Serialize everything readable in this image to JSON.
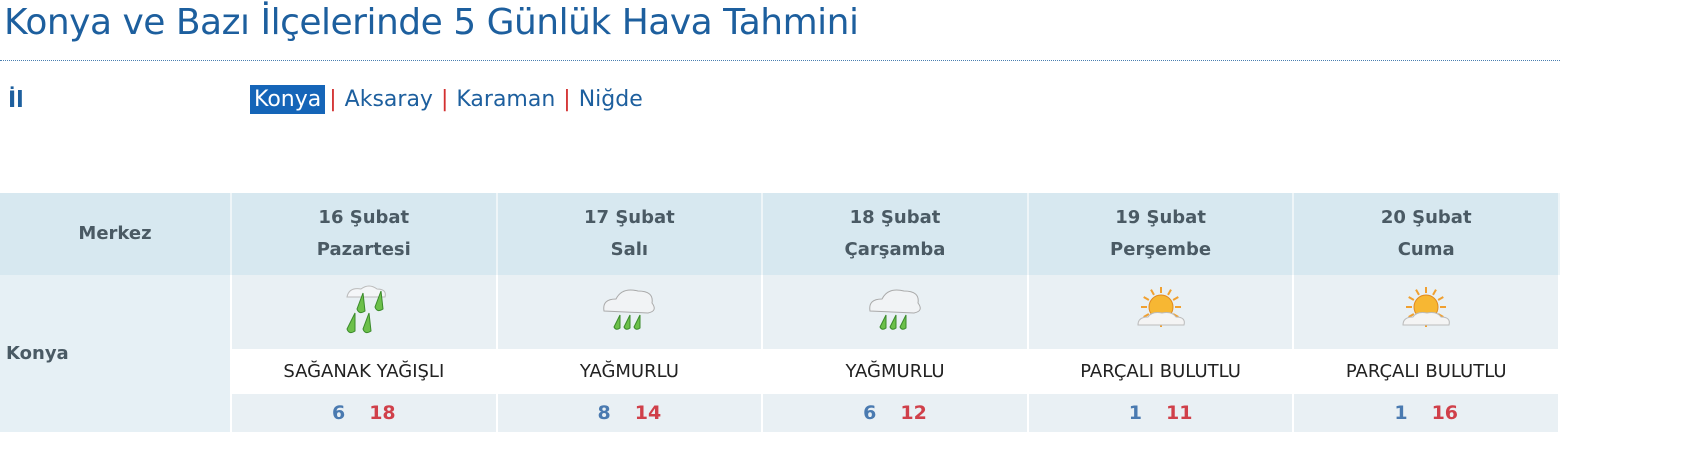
{
  "title": "Konya ve Bazı İlçelerinde 5 Günlük Hava Tahmini",
  "province_label": "İl",
  "provinces": [
    {
      "label": "Konya",
      "active": true
    },
    {
      "label": "Aksaray"
    },
    {
      "label": "Karaman"
    },
    {
      "label": "Niğde"
    }
  ],
  "separator": "|",
  "table": {
    "corner": "Merkez",
    "city": "Konya",
    "days": [
      {
        "date": "16 Şubat",
        "weekday": "Pazartesi",
        "icon": "heavy-rain-icon",
        "desc": "SAĞANAK YAĞIŞLI",
        "low": "6",
        "high": "18"
      },
      {
        "date": "17 Şubat",
        "weekday": "Salı",
        "icon": "rain-icon",
        "desc": "YAĞMURLU",
        "low": "8",
        "high": "14"
      },
      {
        "date": "18 Şubat",
        "weekday": "Çarşamba",
        "icon": "rain-icon",
        "desc": "YAĞMURLU",
        "low": "6",
        "high": "12"
      },
      {
        "date": "19 Şubat",
        "weekday": "Perşembe",
        "icon": "partly-cloudy-icon",
        "desc": "PARÇALI BULUTLU",
        "low": "1",
        "high": "11"
      },
      {
        "date": "20 Şubat",
        "weekday": "Cuma",
        "icon": "partly-cloudy-icon",
        "desc": "PARÇALI BULUTLU",
        "low": "1",
        "high": "16"
      }
    ]
  }
}
